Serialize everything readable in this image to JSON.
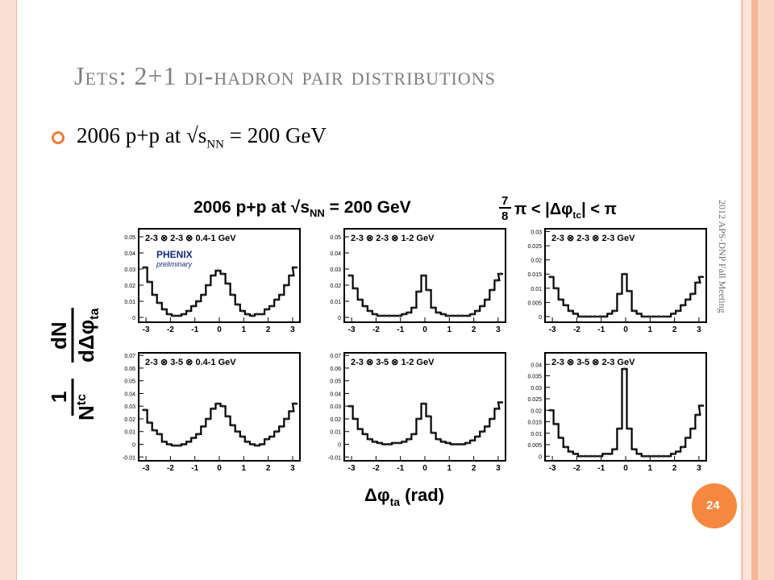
{
  "slide": {
    "title": "Jets:  2+1 di-hadron pair distributions",
    "bullet": {
      "prefix": "2006 p+p at √s",
      "subscript": "NN",
      "suffix": " = 200 GeV"
    },
    "side_text": "2012 APS-DNP Fall Meeting",
    "page_number": "24",
    "colors": {
      "accent": "#f07c3c",
      "title": "#7f7f7f",
      "frame": "#fbd6c3"
    }
  },
  "figure": {
    "header_left": "2006 p+p at √s",
    "header_left_sub": "NN",
    "header_left_suffix": " = 200 GeV",
    "header_right": "π < |Δφ",
    "header_right_sub": "tc",
    "header_right_suffix": "| < π",
    "header_fraction_num": "7",
    "header_fraction_den": "8",
    "ylabel_one": "1",
    "ylabel_N": "N",
    "ylabel_N_sup": "tc",
    "ylabel_dN": "dN",
    "ylabel_den": "dΔφ",
    "ylabel_den_sub": "ta",
    "xlabel": "Δφ",
    "xlabel_sub": "ta",
    "xlabel_suffix": " (rad)",
    "logo": "PHENIX",
    "logo_sub": "preliminary"
  },
  "chart_data": [
    {
      "type": "line",
      "title": "2-3 ⊗ 2-3 ⊗ 0.4-1 GeV",
      "xlim": [
        -3.3,
        3.3
      ],
      "ylim": [
        -0.003,
        0.055
      ],
      "xticks": [
        -3,
        -2,
        -1,
        0,
        1,
        2,
        3
      ],
      "yticks": [
        0,
        0.01,
        0.02,
        0.03,
        0.04,
        0.05
      ],
      "ytick_labels": [
        "0",
        "0.01",
        "0.02",
        "0.03",
        "0.04",
        "0.05"
      ],
      "series": [
        {
          "x": [
            -3.05,
            -2.85,
            -2.65,
            -2.45,
            -2.25,
            -2.05,
            -1.85,
            -1.65,
            -1.45,
            -1.25,
            -1.05,
            -0.85,
            -0.65,
            -0.45,
            -0.25,
            -0.05,
            0.15,
            0.35,
            0.55,
            0.75,
            0.95,
            1.15,
            1.35,
            1.55,
            1.75,
            1.95,
            2.15,
            2.35,
            2.55,
            2.75,
            2.95,
            3.1
          ],
          "y": [
            0.031,
            0.022,
            0.014,
            0.009,
            0.005,
            0.002,
            0.001,
            0.001,
            0.002,
            0.004,
            0.007,
            0.01,
            0.014,
            0.02,
            0.026,
            0.029,
            0.027,
            0.021,
            0.014,
            0.008,
            0.004,
            0.002,
            0.001,
            0.002,
            0.002,
            0.005,
            0.007,
            0.011,
            0.014,
            0.02,
            0.026,
            0.031
          ]
        }
      ]
    },
    {
      "type": "line",
      "title": "2-3 ⊗ 2-3 ⊗ 1-2 GeV",
      "xlim": [
        -3.3,
        3.3
      ],
      "ylim": [
        -0.003,
        0.055
      ],
      "xticks": [
        -3,
        -2,
        -1,
        0,
        1,
        2,
        3
      ],
      "yticks": [
        0,
        0.01,
        0.02,
        0.03,
        0.04,
        0.05
      ],
      "ytick_labels": [
        "0",
        "0.01",
        "0.02",
        "0.03",
        "0.04",
        "0.05"
      ],
      "series": [
        {
          "x": [
            -3.05,
            -2.85,
            -2.65,
            -2.45,
            -2.25,
            -2.05,
            -1.85,
            -1.65,
            -1.45,
            -1.25,
            -1.05,
            -0.85,
            -0.65,
            -0.45,
            -0.25,
            -0.05,
            0.15,
            0.35,
            0.55,
            0.75,
            0.95,
            1.15,
            1.35,
            1.55,
            1.75,
            1.95,
            2.15,
            2.35,
            2.55,
            2.75,
            2.95,
            3.1
          ],
          "y": [
            0.026,
            0.018,
            0.011,
            0.007,
            0.004,
            0.002,
            0.001,
            0.001,
            0.001,
            0.001,
            0.001,
            0.002,
            0.003,
            0.006,
            0.016,
            0.026,
            0.017,
            0.006,
            0.003,
            0.002,
            0.001,
            0.001,
            0.001,
            0.001,
            0.001,
            0.002,
            0.004,
            0.007,
            0.011,
            0.017,
            0.023,
            0.027
          ]
        }
      ]
    },
    {
      "type": "line",
      "title": "2-3 ⊗ 2-3 ⊗ 2-3 GeV",
      "xlim": [
        -3.3,
        3.3
      ],
      "ylim": [
        -0.002,
        0.031
      ],
      "xticks": [
        -3,
        -2,
        -1,
        0,
        1,
        2,
        3
      ],
      "yticks": [
        0,
        0.005,
        0.01,
        0.015,
        0.02,
        0.025,
        0.03
      ],
      "ytick_labels": [
        "0",
        "0.005",
        "0.01",
        "0.015",
        "0.02",
        "0.025",
        "0.03"
      ],
      "series": [
        {
          "x": [
            -3.05,
            -2.85,
            -2.65,
            -2.45,
            -2.25,
            -2.05,
            -1.85,
            -1.65,
            -1.45,
            -1.25,
            -1.05,
            -0.85,
            -0.65,
            -0.45,
            -0.25,
            -0.05,
            0.15,
            0.35,
            0.55,
            0.75,
            0.95,
            1.15,
            1.35,
            1.55,
            1.75,
            1.95,
            2.15,
            2.35,
            2.55,
            2.75,
            2.95,
            3.1
          ],
          "y": [
            0.014,
            0.01,
            0.006,
            0.004,
            0.002,
            0.001,
            0.0,
            0.0,
            0.0,
            0.0,
            0.0,
            0.0,
            0.001,
            0.002,
            0.008,
            0.015,
            0.009,
            0.002,
            0.001,
            0.0,
            0.0,
            0.0,
            0.0,
            0.0,
            0.0,
            0.001,
            0.002,
            0.004,
            0.006,
            0.008,
            0.012,
            0.014
          ]
        }
      ]
    },
    {
      "type": "line",
      "title": "2-3 ⊗ 3-5 ⊗ 0.4-1 GeV",
      "xlim": [
        -3.3,
        3.3
      ],
      "ylim": [
        -0.013,
        0.072
      ],
      "xticks": [
        -3,
        -2,
        -1,
        0,
        1,
        2,
        3
      ],
      "yticks": [
        -0.01,
        0,
        0.01,
        0.02,
        0.03,
        0.04,
        0.05,
        0.06,
        0.07
      ],
      "ytick_labels": [
        "-0.01",
        "0",
        "0.01",
        "0.02",
        "0.03",
        "0.04",
        "0.05",
        "0.06",
        "0.07"
      ],
      "series": [
        {
          "x": [
            -3.05,
            -2.85,
            -2.65,
            -2.45,
            -2.25,
            -2.05,
            -1.85,
            -1.65,
            -1.45,
            -1.25,
            -1.05,
            -0.85,
            -0.65,
            -0.45,
            -0.25,
            -0.05,
            0.15,
            0.35,
            0.55,
            0.75,
            0.95,
            1.15,
            1.35,
            1.55,
            1.75,
            1.95,
            2.15,
            2.35,
            2.55,
            2.75,
            2.95,
            3.1
          ],
          "y": [
            0.027,
            0.017,
            0.011,
            0.008,
            0.002,
            0.0,
            -0.001,
            -0.001,
            0.0,
            0.002,
            0.005,
            0.008,
            0.014,
            0.02,
            0.028,
            0.032,
            0.03,
            0.022,
            0.015,
            0.01,
            0.006,
            0.002,
            0.0,
            -0.001,
            0.0,
            0.004,
            0.006,
            0.01,
            0.014,
            0.02,
            0.026,
            0.032
          ]
        }
      ]
    },
    {
      "type": "line",
      "title": "2-3 ⊗ 3-5 ⊗ 1-2 GeV",
      "xlim": [
        -3.3,
        3.3
      ],
      "ylim": [
        -0.013,
        0.072
      ],
      "xticks": [
        -3,
        -2,
        -1,
        0,
        1,
        2,
        3
      ],
      "yticks": [
        -0.01,
        0,
        0.01,
        0.02,
        0.03,
        0.04,
        0.05,
        0.06,
        0.07
      ],
      "ytick_labels": [
        "-0.01",
        "0",
        "0.01",
        "0.02",
        "0.03",
        "0.04",
        "0.05",
        "0.06",
        "0.07"
      ],
      "series": [
        {
          "x": [
            -3.05,
            -2.85,
            -2.65,
            -2.45,
            -2.25,
            -2.05,
            -1.85,
            -1.65,
            -1.45,
            -1.25,
            -1.05,
            -0.85,
            -0.65,
            -0.45,
            -0.25,
            -0.05,
            0.15,
            0.35,
            0.55,
            0.75,
            0.95,
            1.15,
            1.35,
            1.55,
            1.75,
            1.95,
            2.15,
            2.35,
            2.55,
            2.75,
            2.95,
            3.1
          ],
          "y": [
            0.03,
            0.02,
            0.012,
            0.008,
            0.004,
            0.002,
            0.001,
            0.0,
            0.0,
            0.001,
            0.001,
            0.002,
            0.004,
            0.008,
            0.02,
            0.032,
            0.022,
            0.009,
            0.004,
            0.002,
            0.001,
            0.0,
            0.0,
            0.0,
            0.001,
            0.003,
            0.006,
            0.01,
            0.014,
            0.02,
            0.028,
            0.033
          ]
        }
      ]
    },
    {
      "type": "line",
      "title": "2-3 ⊗ 3-5 ⊗ 2-3 GeV",
      "xlim": [
        -3.3,
        3.3
      ],
      "ylim": [
        -0.002,
        0.045
      ],
      "xticks": [
        -3,
        -2,
        -1,
        0,
        1,
        2,
        3
      ],
      "yticks": [
        0,
        0.005,
        0.01,
        0.015,
        0.02,
        0.025,
        0.03,
        0.035,
        0.04
      ],
      "ytick_labels": [
        "0",
        "0.005",
        "0.01",
        "0.015",
        "0.02",
        "0.025",
        "0.03",
        "0.035",
        "0.04"
      ],
      "series": [
        {
          "x": [
            -3.05,
            -2.85,
            -2.65,
            -2.45,
            -2.25,
            -2.05,
            -1.85,
            -1.65,
            -1.45,
            -1.25,
            -1.05,
            -0.85,
            -0.65,
            -0.45,
            -0.25,
            -0.05,
            0.15,
            0.35,
            0.55,
            0.75,
            0.95,
            1.15,
            1.35,
            1.55,
            1.75,
            1.95,
            2.15,
            2.35,
            2.55,
            2.75,
            2.95,
            3.1
          ],
          "y": [
            0.02,
            0.014,
            0.008,
            0.004,
            0.002,
            0.001,
            0.0,
            0.0,
            0.0,
            0.0,
            0.0,
            0.001,
            0.001,
            0.003,
            0.012,
            0.038,
            0.012,
            0.003,
            0.001,
            0.0,
            0.0,
            0.0,
            0.0,
            0.0,
            0.0,
            0.001,
            0.002,
            0.004,
            0.008,
            0.012,
            0.018,
            0.022
          ]
        }
      ]
    }
  ]
}
